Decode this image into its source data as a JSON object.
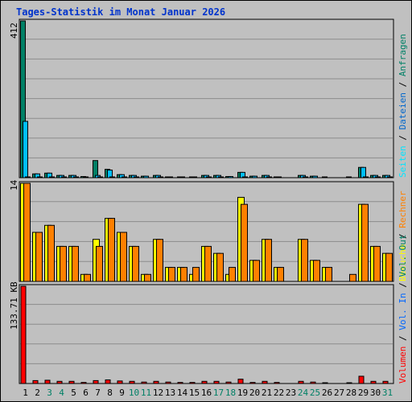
{
  "title": "Tages-Statistik im Monat Januar 2026",
  "colors": {
    "background": "#c0c0c0",
    "grid": "#8c8c8c",
    "title": "#0033cc",
    "anfragen": "#008066",
    "dateien": "#00bfff",
    "seiten": "#00e5ff",
    "besuche": "#ffff00",
    "rechner": "#ff8000",
    "volumen": "#ff0000",
    "vol_in": "#0066ff",
    "vol_out": "#008066",
    "weekend": "#008066",
    "weekday": "#000000"
  },
  "side_legend": {
    "top": [
      {
        "text": "Seiten",
        "color": "#00e5ff"
      },
      {
        "text": " / ",
        "color": "#000000"
      },
      {
        "text": "Dateien",
        "color": "#0066cc"
      },
      {
        "text": " / ",
        "color": "#000000"
      },
      {
        "text": "Anfragen",
        "color": "#008066"
      }
    ],
    "middle": [
      {
        "text": "Besuche",
        "color": "#ffff00"
      },
      {
        "text": " / ",
        "color": "#000000"
      },
      {
        "text": "Rechner",
        "color": "#ff8000"
      }
    ],
    "bottom": [
      {
        "text": "Volumen",
        "color": "#ff0000"
      },
      {
        "text": " / ",
        "color": "#000000"
      },
      {
        "text": "Vol. In",
        "color": "#0066ff"
      },
      {
        "text": " / ",
        "color": "#000000"
      },
      {
        "text": "Vol. Out",
        "color": "#008066"
      }
    ]
  },
  "chart_data": [
    {
      "type": "bar",
      "panel": "requests",
      "ymax_label": "412",
      "ylim": [
        0,
        412
      ],
      "categories": [
        "1",
        "2",
        "3",
        "4",
        "5",
        "6",
        "7",
        "8",
        "9",
        "10",
        "11",
        "12",
        "13",
        "14",
        "15",
        "16",
        "17",
        "18",
        "19",
        "20",
        "21",
        "22",
        "23",
        "24",
        "25",
        "26",
        "27",
        "28",
        "29",
        "30",
        "31"
      ],
      "series": [
        {
          "name": "Anfragen",
          "values": [
            412,
            10,
            12,
            6,
            6,
            3,
            45,
            22,
            8,
            6,
            4,
            6,
            2,
            2,
            2,
            6,
            6,
            3,
            14,
            4,
            6,
            2,
            0,
            6,
            4,
            2,
            0,
            2,
            27,
            6,
            6
          ]
        },
        {
          "name": "Dateien",
          "values": [
            148,
            10,
            12,
            6,
            6,
            2,
            6,
            20,
            8,
            6,
            4,
            6,
            2,
            2,
            2,
            6,
            6,
            3,
            14,
            4,
            6,
            2,
            0,
            6,
            4,
            0,
            0,
            0,
            27,
            6,
            6
          ]
        },
        {
          "name": "Seiten",
          "values": [
            1,
            1,
            1,
            1,
            1,
            0,
            1,
            1,
            1,
            1,
            0,
            1,
            0,
            0,
            0,
            1,
            1,
            0,
            1,
            0,
            1,
            0,
            0,
            1,
            0,
            0,
            0,
            0,
            2,
            1,
            1
          ]
        }
      ]
    },
    {
      "type": "bar",
      "panel": "visits",
      "ymax_label": "14",
      "ylim": [
        0,
        14
      ],
      "categories": [
        "1",
        "2",
        "3",
        "4",
        "5",
        "6",
        "7",
        "8",
        "9",
        "10",
        "11",
        "12",
        "13",
        "14",
        "15",
        "16",
        "17",
        "18",
        "19",
        "20",
        "21",
        "22",
        "23",
        "24",
        "25",
        "26",
        "27",
        "28",
        "29",
        "30",
        "31"
      ],
      "series": [
        {
          "name": "Besuche",
          "values": [
            14,
            7,
            8,
            5,
            5,
            1,
            6,
            9,
            7,
            5,
            1,
            6,
            2,
            2,
            1,
            5,
            4,
            1,
            12,
            3,
            6,
            2,
            0,
            6,
            3,
            2,
            0,
            0,
            11,
            5,
            4
          ]
        },
        {
          "name": "Rechner",
          "values": [
            14,
            7,
            8,
            5,
            5,
            1,
            5,
            9,
            7,
            5,
            1,
            6,
            2,
            2,
            2,
            5,
            4,
            2,
            11,
            3,
            6,
            2,
            0,
            6,
            3,
            2,
            0,
            1,
            11,
            5,
            4
          ]
        }
      ]
    },
    {
      "type": "bar",
      "panel": "volume",
      "ymax_label": "133.71 KB",
      "ylim": [
        0,
        133.71
      ],
      "unit": "KB",
      "categories": [
        "1",
        "2",
        "3",
        "4",
        "5",
        "6",
        "7",
        "8",
        "9",
        "10",
        "11",
        "12",
        "13",
        "14",
        "15",
        "16",
        "17",
        "18",
        "19",
        "20",
        "21",
        "22",
        "23",
        "24",
        "25",
        "26",
        "27",
        "28",
        "29",
        "30",
        "31"
      ],
      "series": [
        {
          "name": "Volumen",
          "values": [
            133.71,
            4,
            4.5,
            3,
            3,
            1.5,
            4,
            5,
            3.5,
            3,
            2,
            3,
            2,
            1.5,
            1.5,
            3,
            3,
            2,
            6,
            1.5,
            3,
            1.5,
            0,
            3,
            2,
            1,
            0,
            1,
            10,
            3,
            3
          ]
        }
      ]
    }
  ],
  "weekend_days": [
    "3",
    "4",
    "10",
    "11",
    "17",
    "18",
    "24",
    "25",
    "31"
  ]
}
